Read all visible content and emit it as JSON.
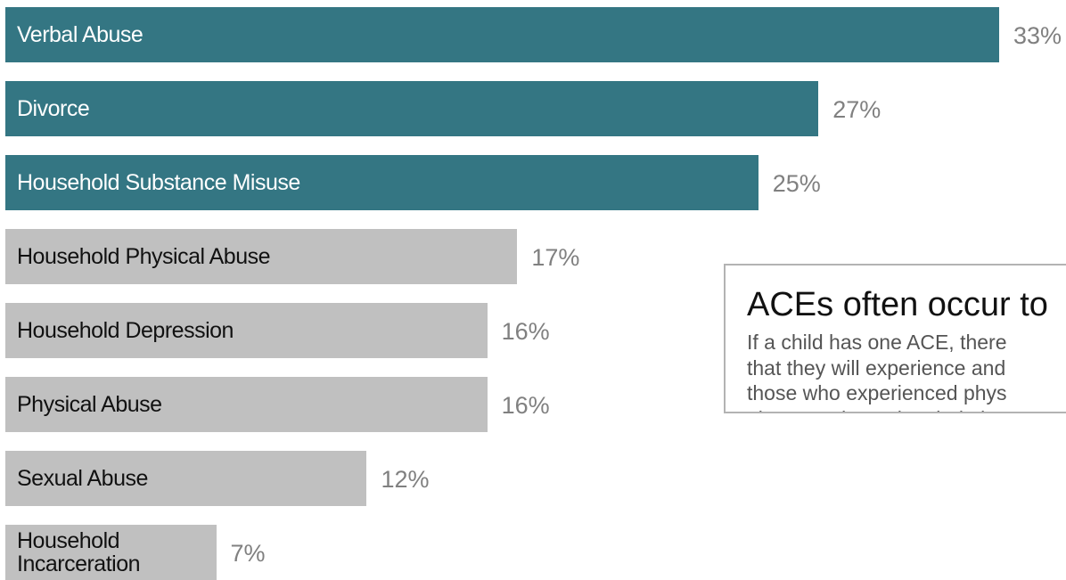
{
  "chart_data": {
    "type": "bar",
    "orientation": "horizontal",
    "categories": [
      "Verbal Abuse",
      "Divorce",
      "Household Substance Misuse",
      "Household Physical Abuse",
      "Household Depression",
      "Physical Abuse",
      "Sexual Abuse",
      "Household Incarceration"
    ],
    "values": [
      33,
      27,
      25,
      17,
      16,
      16,
      12,
      7
    ],
    "value_labels": [
      "33%",
      "27%",
      "25%",
      "17%",
      "16%",
      "16%",
      "12%",
      "7%"
    ],
    "highlighted": [
      true,
      true,
      true,
      false,
      false,
      false,
      false,
      false
    ],
    "colors": {
      "highlight": "#347683",
      "default": "#c0c0c0"
    },
    "xlim": [
      0,
      33
    ],
    "grid": false,
    "legend": "none"
  },
  "callout": {
    "title": "ACEs often occur to",
    "lines": [
      "If a child has one ACE, there",
      "that they will experience and",
      "those who experienced phys",
      "also experienced verbal abus"
    ]
  }
}
